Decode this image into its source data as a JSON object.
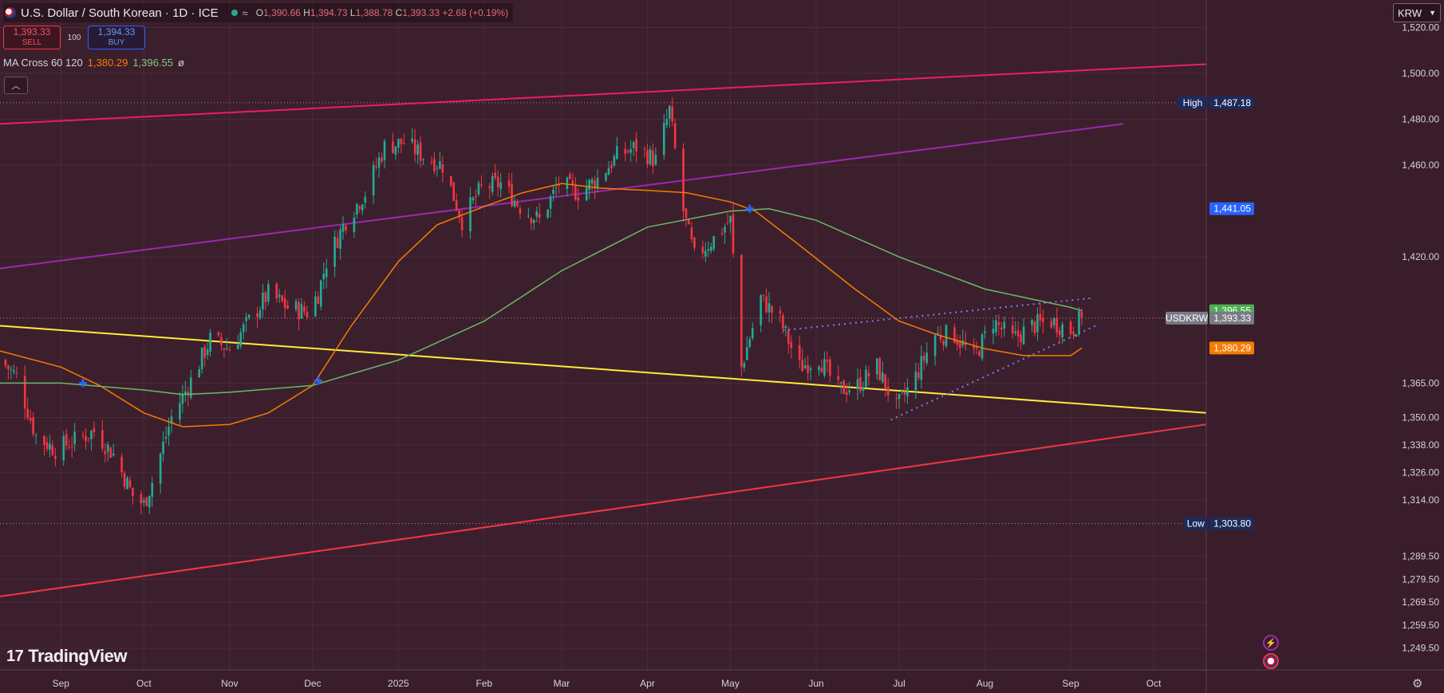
{
  "header": {
    "title": "U.S. Dollar / South Korean · 1D · ICE",
    "open_label": "O",
    "open": "1,390.66",
    "high_label": "H",
    "high": "1,394.73",
    "low_label": "L",
    "low": "1,388.78",
    "close_label": "C",
    "close": "1,393.33",
    "change": "+2.68 (+0.19%)"
  },
  "trade": {
    "sell_price": "1,393.33",
    "sell_label": "SELL",
    "spread": "100",
    "buy_price": "1,394.33",
    "buy_label": "BUY"
  },
  "indicator": {
    "name": "MA Cross 60 120",
    "ma_fast": "1,380.29",
    "ma_slow": "1,396.55",
    "extra": "ø"
  },
  "currency": "KRW",
  "brand": "TradingView",
  "icons": {
    "collapse": "chevron-up-icon",
    "dropdown": "chevron-down-icon",
    "bolt": "lightning-icon",
    "flag": "us-flag-icon",
    "settings": "gear-icon"
  },
  "colors": {
    "background": "#3c1f2c",
    "bull": "#22ab94",
    "bear": "#f23645",
    "ma_fast": "#f57c00",
    "ma_slow": "#66bb6a",
    "channel_top": "#e91e63",
    "channel_bottom": "#f23645",
    "trend_purple": "#9c27b0",
    "trend_yellow": "#ffeb3b",
    "triangle": "#7b7bff",
    "cross_marker": "#2962ff"
  },
  "chart_data": {
    "type": "candlestick",
    "symbol": "USDKRW",
    "title": "U.S. Dollar / South Korean",
    "interval": "1D",
    "exchange": "ICE",
    "x_start": "2024-08-10",
    "x_end": "2025-10-20",
    "ylim": [
      1240,
      1532
    ],
    "y_ticks": [
      "1,520.00",
      "1,500.00",
      "1,480.00",
      "1,460.00",
      "1,441.05",
      "1,420.00",
      "1,396.55",
      "1,393.33",
      "1,380.29",
      "1,365.00",
      "1,350.00",
      "1,338.00",
      "1,326.00",
      "1,314.00",
      "1,303.80",
      "1,289.50",
      "1,279.50",
      "1,269.50",
      "1,259.50",
      "1,249.50"
    ],
    "y_grid": [
      1520,
      1500,
      1480,
      1460,
      1420,
      1365,
      1350,
      1338,
      1326,
      1314,
      1289.5,
      1279.5,
      1269.5,
      1259.5,
      1249.5
    ],
    "x_ticks": [
      {
        "label": "Sep",
        "date": "2024-09-01"
      },
      {
        "label": "Oct",
        "date": "2024-10-01"
      },
      {
        "label": "Nov",
        "date": "2024-11-01"
      },
      {
        "label": "Dec",
        "date": "2024-12-01"
      },
      {
        "label": "2025",
        "date": "2025-01-01"
      },
      {
        "label": "Feb",
        "date": "2025-02-01"
      },
      {
        "label": "Mar",
        "date": "2025-03-01"
      },
      {
        "label": "Apr",
        "date": "2025-04-01"
      },
      {
        "label": "May",
        "date": "2025-05-01"
      },
      {
        "label": "Jun",
        "date": "2025-06-01"
      },
      {
        "label": "Jul",
        "date": "2025-07-01"
      },
      {
        "label": "Aug",
        "date": "2025-08-01"
      },
      {
        "label": "Sep",
        "date": "2025-09-01"
      },
      {
        "label": "Oct",
        "date": "2025-10-01"
      }
    ],
    "close_path": [
      [
        "2024-08-10",
        1375
      ],
      [
        "2024-08-16",
        1368
      ],
      [
        "2024-08-23",
        1342
      ],
      [
        "2024-08-30",
        1336
      ],
      [
        "2024-09-06",
        1340
      ],
      [
        "2024-09-13",
        1344
      ],
      [
        "2024-09-20",
        1334
      ],
      [
        "2024-09-27",
        1316
      ],
      [
        "2024-10-01",
        1312
      ],
      [
        "2024-10-04",
        1322
      ],
      [
        "2024-10-11",
        1350
      ],
      [
        "2024-10-18",
        1366
      ],
      [
        "2024-10-25",
        1384
      ],
      [
        "2024-11-01",
        1380
      ],
      [
        "2024-11-08",
        1392
      ],
      [
        "2024-11-15",
        1404
      ],
      [
        "2024-11-22",
        1398
      ],
      [
        "2024-11-29",
        1396
      ],
      [
        "2024-12-03",
        1404
      ],
      [
        "2024-12-06",
        1418
      ],
      [
        "2024-12-13",
        1436
      ],
      [
        "2024-12-20",
        1448
      ],
      [
        "2024-12-27",
        1468
      ],
      [
        "2025-01-03",
        1470
      ],
      [
        "2025-01-10",
        1464
      ],
      [
        "2025-01-17",
        1460
      ],
      [
        "2025-01-24",
        1436
      ],
      [
        "2025-01-31",
        1450
      ],
      [
        "2025-02-07",
        1452
      ],
      [
        "2025-02-14",
        1442
      ],
      [
        "2025-02-21",
        1436
      ],
      [
        "2025-02-28",
        1452
      ],
      [
        "2025-03-07",
        1448
      ],
      [
        "2025-03-14",
        1454
      ],
      [
        "2025-03-21",
        1464
      ],
      [
        "2025-03-28",
        1468
      ],
      [
        "2025-04-04",
        1462
      ],
      [
        "2025-04-09",
        1484
      ],
      [
        "2025-04-14",
        1440
      ],
      [
        "2025-04-18",
        1420
      ],
      [
        "2025-04-25",
        1428
      ],
      [
        "2025-05-01",
        1436
      ],
      [
        "2025-05-05",
        1372
      ],
      [
        "2025-05-12",
        1402
      ],
      [
        "2025-05-19",
        1392
      ],
      [
        "2025-05-26",
        1372
      ],
      [
        "2025-06-02",
        1376
      ],
      [
        "2025-06-09",
        1362
      ],
      [
        "2025-06-16",
        1364
      ],
      [
        "2025-06-23",
        1372
      ],
      [
        "2025-06-30",
        1354
      ],
      [
        "2025-07-07",
        1368
      ],
      [
        "2025-07-14",
        1386
      ],
      [
        "2025-07-21",
        1386
      ],
      [
        "2025-07-28",
        1376
      ],
      [
        "2025-08-04",
        1392
      ],
      [
        "2025-08-11",
        1384
      ],
      [
        "2025-08-18",
        1390
      ],
      [
        "2025-08-25",
        1392
      ],
      [
        "2025-09-01",
        1388
      ],
      [
        "2025-09-05",
        1393.33
      ]
    ],
    "series": [
      {
        "name": "MA 60",
        "points": [
          [
            "2024-08-10",
            1379
          ],
          [
            "2024-09-01",
            1372
          ],
          [
            "2024-09-15",
            1364
          ],
          [
            "2024-10-01",
            1352
          ],
          [
            "2024-10-15",
            1346
          ],
          [
            "2024-11-01",
            1347
          ],
          [
            "2024-11-15",
            1352
          ],
          [
            "2024-12-01",
            1364
          ],
          [
            "2024-12-15",
            1390
          ],
          [
            "2025-01-01",
            1418
          ],
          [
            "2025-01-15",
            1434
          ],
          [
            "2025-02-01",
            1442
          ],
          [
            "2025-02-15",
            1448
          ],
          [
            "2025-03-01",
            1452
          ],
          [
            "2025-03-15",
            1450
          ],
          [
            "2025-04-01",
            1449
          ],
          [
            "2025-04-15",
            1448
          ],
          [
            "2025-05-01",
            1444
          ],
          [
            "2025-05-10",
            1440
          ],
          [
            "2025-05-25",
            1426
          ],
          [
            "2025-06-15",
            1406
          ],
          [
            "2025-07-01",
            1392
          ],
          [
            "2025-07-15",
            1386
          ],
          [
            "2025-08-01",
            1380
          ],
          [
            "2025-08-15",
            1377
          ],
          [
            "2025-09-01",
            1377
          ],
          [
            "2025-09-05",
            1380.29
          ]
        ]
      },
      {
        "name": "MA 120",
        "points": [
          [
            "2024-08-10",
            1365
          ],
          [
            "2024-09-01",
            1365
          ],
          [
            "2024-10-01",
            1362
          ],
          [
            "2024-10-15",
            1360
          ],
          [
            "2024-11-01",
            1361
          ],
          [
            "2024-12-01",
            1364
          ],
          [
            "2024-12-15",
            1369
          ],
          [
            "2025-01-01",
            1375
          ],
          [
            "2025-02-01",
            1392
          ],
          [
            "2025-03-01",
            1414
          ],
          [
            "2025-04-01",
            1433
          ],
          [
            "2025-05-01",
            1440
          ],
          [
            "2025-05-15",
            1441
          ],
          [
            "2025-06-01",
            1436
          ],
          [
            "2025-07-01",
            1420
          ],
          [
            "2025-08-01",
            1406
          ],
          [
            "2025-09-01",
            1398
          ],
          [
            "2025-09-05",
            1396.55
          ]
        ]
      }
    ],
    "cross_markers": [
      {
        "date": "2024-09-09",
        "value": 1365
      },
      {
        "date": "2024-12-03",
        "value": 1366
      },
      {
        "date": "2025-05-08",
        "value": 1441
      }
    ],
    "drawings": [
      {
        "name": "channel-top-line",
        "color": "#e91e63",
        "from": [
          "2024-08-10",
          1478
        ],
        "to": [
          "2025-10-20",
          1504
        ]
      },
      {
        "name": "channel-bottom-line",
        "color": "#f23645",
        "from": [
          "2024-08-10",
          1272
        ],
        "to": [
          "2025-10-20",
          1347
        ]
      },
      {
        "name": "purple-trend-line",
        "color": "#9c27b0",
        "from": [
          "2024-08-10",
          1415
        ],
        "to": [
          "2025-09-20",
          1478
        ]
      },
      {
        "name": "yellow-trend-line",
        "color": "#ffeb3b",
        "from": [
          "2024-08-10",
          1390
        ],
        "to": [
          "2025-10-20",
          1352
        ]
      },
      {
        "name": "triangle-upper-line",
        "color": "#7b7bff",
        "dashed": true,
        "from": [
          "2025-05-20",
          1388
        ],
        "to": [
          "2025-09-08",
          1402
        ]
      },
      {
        "name": "triangle-lower-line",
        "color": "#7b7bff",
        "dashed": true,
        "from": [
          "2025-06-28",
          1349
        ],
        "to": [
          "2025-09-10",
          1390
        ]
      }
    ],
    "high_line": {
      "label": "High",
      "value": 1487.18,
      "text": "1,487.18"
    },
    "low_line": {
      "label": "Low",
      "value": 1303.8,
      "text": "1,303.80"
    },
    "price_labels": [
      {
        "name": "ma120-label",
        "value": 1396.55,
        "text": "1,396.55",
        "color": "#4caf50"
      },
      {
        "name": "last-price-label",
        "value": 1393.33,
        "text": "1,393.33",
        "color": "#787b86",
        "tag": "USDKRW"
      },
      {
        "name": "ma60-label",
        "value": 1380.29,
        "text": "1,380.29",
        "color": "#f57c00"
      },
      {
        "name": "cross-price-label",
        "value": 1441.05,
        "text": "1,441.05",
        "color": "#2962ff"
      }
    ]
  }
}
